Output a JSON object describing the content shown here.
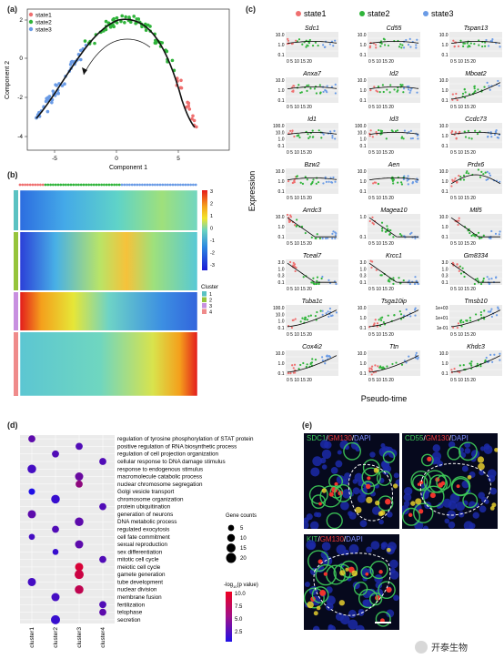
{
  "panel_labels": {
    "a": "(a)",
    "b": "(b)",
    "c": "(c)",
    "d": "(d)",
    "e": "(e)"
  },
  "colors": {
    "state1": "#ef6f6f",
    "state2": "#2fb43a",
    "state3": "#6a9be6",
    "cluster1": "#5bc2c2",
    "cluster2": "#96c43c",
    "cluster3": "#c890e0",
    "cluster4": "#ef8b8b"
  },
  "panel_a": {
    "legend": [
      "state1",
      "state2",
      "state3"
    ],
    "xlabel": "Component 1",
    "ylabel": "Component 2",
    "xticks": [
      "-5",
      "0",
      "5"
    ],
    "yticks": [
      "-4",
      "-2",
      "0",
      "2"
    ]
  },
  "panel_b": {
    "colorbar_ticks": [
      "3",
      "2",
      "1",
      "0",
      "-1",
      "-2",
      "-3"
    ],
    "cluster_title": "Cluster",
    "clusters": [
      "1",
      "2",
      "3",
      "4"
    ]
  },
  "panel_c": {
    "legend": [
      "state1",
      "state2",
      "state3"
    ],
    "ylabel": "Expression",
    "xlabel": "Pseudo-time",
    "xticks": "0 5 10 15 20",
    "genes": [
      {
        "name": "Sdc1",
        "ticks": [
          "10.0",
          "1.0",
          "0.1"
        ],
        "trend": "flat"
      },
      {
        "name": "Cd55",
        "ticks": [
          "10.0",
          "1.0",
          "0.1"
        ],
        "trend": "flat"
      },
      {
        "name": "Tspan13",
        "ticks": [
          "10.0",
          "1.0",
          "0.1"
        ],
        "trend": "flat"
      },
      {
        "name": "Anxa7",
        "ticks": [
          "10.0",
          "1.0",
          "0.1"
        ],
        "trend": "flat"
      },
      {
        "name": "Id2",
        "ticks": [
          "10.0",
          "1.0",
          "0.1"
        ],
        "trend": "flat"
      },
      {
        "name": "Mboat2",
        "ticks": [
          "10.0",
          "1.0",
          "0.1"
        ],
        "trend": "up"
      },
      {
        "name": "Id1",
        "ticks": [
          "100.0",
          "10.0",
          "1.0",
          "0.1"
        ],
        "trend": "flat"
      },
      {
        "name": "Id3",
        "ticks": [
          "100.0",
          "10.0",
          "1.0",
          "0.1"
        ],
        "trend": "flat"
      },
      {
        "name": "Ccdc73",
        "ticks": [
          "10.0",
          "1.0",
          "0.1"
        ],
        "trend": "flat"
      },
      {
        "name": "Bzw2",
        "ticks": [
          "10.0",
          "1.0",
          "0.1"
        ],
        "trend": "flat"
      },
      {
        "name": "Aen",
        "ticks": [
          "10.0",
          "1.0",
          "0.1"
        ],
        "trend": "flat"
      },
      {
        "name": "Prdx6",
        "ticks": [
          "10.0",
          "1.0",
          "0.1"
        ],
        "trend": "bump"
      },
      {
        "name": "Arrdc3",
        "ticks": [
          "10.0",
          "1.0",
          "0.1"
        ],
        "trend": "down"
      },
      {
        "name": "Magea10",
        "ticks": [
          "1.0",
          "0.1"
        ],
        "trend": "down"
      },
      {
        "name": "Mtl5",
        "ticks": [
          "10.0",
          "1.0",
          "0.1"
        ],
        "trend": "down"
      },
      {
        "name": "Tceal7",
        "ticks": [
          "3.0",
          "1.0",
          "0.3",
          "0.1"
        ],
        "trend": "down"
      },
      {
        "name": "Krcc1",
        "ticks": [
          "3.0",
          "1.0",
          "0.3",
          "0.1"
        ],
        "trend": "down"
      },
      {
        "name": "Gm8334",
        "ticks": [
          "3.0",
          "1.0",
          "0.3",
          "0.1"
        ],
        "trend": "down"
      },
      {
        "name": "Tuba1c",
        "ticks": [
          "100.0",
          "10.0",
          "1.0",
          "0.1"
        ],
        "trend": "up"
      },
      {
        "name": "Tsga10ip",
        "ticks": [
          "10.0",
          "1.0",
          "0.1"
        ],
        "trend": "up"
      },
      {
        "name": "Tmsb10",
        "ticks": [
          "1e+03",
          "1e+01",
          "1e-01"
        ],
        "trend": "up"
      },
      {
        "name": "Cox4i2",
        "ticks": [
          "10.0",
          "1.0",
          "0.1"
        ],
        "trend": "up"
      },
      {
        "name": "Ttn",
        "ticks": [
          "10.0",
          "1.0",
          "0.1"
        ],
        "trend": "up"
      },
      {
        "name": "Khdc3",
        "ticks": [
          "10.0",
          "1.0",
          "0.1"
        ],
        "trend": "up"
      }
    ]
  },
  "panel_d": {
    "clusters": [
      "cluster1",
      "cluster2",
      "cluster3",
      "cluster4"
    ],
    "terms": [
      "regulation of tyrosine phosphorylation of STAT protein",
      "positive regulation of RNA biosynthetic process",
      "regulation of cell projection organization",
      "cellular response to DNA damage stimulus",
      "response to endogenous stimulus",
      "macromolecule catabolic process",
      "nuclear chromosome segregation",
      "Golgi vesicle transport",
      "chromosome organization",
      "protein ubiquitination",
      "generation of neurons",
      "DNA metabolic process",
      "regulated exocytosis",
      "cell fate commitment",
      "sexual reproduction",
      "sex differentiation",
      "mitotic cell cycle",
      "meiotic cell cycle",
      "gamete generation",
      "tube development",
      "nuclear division",
      "membrane fusion",
      "fertilization",
      "telophase",
      "secretion"
    ],
    "points": [
      {
        "term": 0,
        "cluster": 0,
        "count": 8,
        "p": 4.5
      },
      {
        "term": 1,
        "cluster": 2,
        "count": 8,
        "p": 4.0
      },
      {
        "term": 2,
        "cluster": 1,
        "count": 8,
        "p": 4.0
      },
      {
        "term": 3,
        "cluster": 3,
        "count": 8,
        "p": 4.0
      },
      {
        "term": 4,
        "cluster": 0,
        "count": 14,
        "p": 3.5
      },
      {
        "term": 5,
        "cluster": 2,
        "count": 12,
        "p": 5.0
      },
      {
        "term": 6,
        "cluster": 2,
        "count": 8,
        "p": 6.5
      },
      {
        "term": 7,
        "cluster": 0,
        "count": 6,
        "p": 2.0
      },
      {
        "term": 8,
        "cluster": 1,
        "count": 14,
        "p": 3.0
      },
      {
        "term": 9,
        "cluster": 3,
        "count": 8,
        "p": 4.0
      },
      {
        "term": 10,
        "cluster": 0,
        "count": 12,
        "p": 4.5
      },
      {
        "term": 11,
        "cluster": 2,
        "count": 14,
        "p": 4.5
      },
      {
        "term": 12,
        "cluster": 1,
        "count": 8,
        "p": 4.0
      },
      {
        "term": 13,
        "cluster": 0,
        "count": 5,
        "p": 3.5
      },
      {
        "term": 14,
        "cluster": 2,
        "count": 12,
        "p": 4.5
      },
      {
        "term": 15,
        "cluster": 1,
        "count": 5,
        "p": 3.0
      },
      {
        "term": 16,
        "cluster": 3,
        "count": 8,
        "p": 4.0
      },
      {
        "term": 17,
        "cluster": 2,
        "count": 12,
        "p": 9.5
      },
      {
        "term": 18,
        "cluster": 2,
        "count": 16,
        "p": 9.0
      },
      {
        "term": 19,
        "cluster": 0,
        "count": 12,
        "p": 3.5
      },
      {
        "term": 20,
        "cluster": 2,
        "count": 14,
        "p": 8.5
      },
      {
        "term": 21,
        "cluster": 1,
        "count": 12,
        "p": 3.5
      },
      {
        "term": 22,
        "cluster": 3,
        "count": 8,
        "p": 4.0
      },
      {
        "term": 23,
        "cluster": 3,
        "count": 8,
        "p": 4.5
      },
      {
        "term": 24,
        "cluster": 1,
        "count": 16,
        "p": 3.0
      }
    ],
    "size_legend_title": "Gene counts",
    "size_legend": [
      "5",
      "10",
      "15",
      "20"
    ],
    "color_legend_ticks": [
      "10.0",
      "7.5",
      "5.0",
      "2.5"
    ]
  },
  "panel_e": {
    "images": [
      {
        "label_a": "SDC1",
        "label_b": "GM130",
        "label_c": "DAPI",
        "color_a": "#3fcf5b"
      },
      {
        "label_a": "CD55",
        "label_b": "GM130",
        "label_c": "DAPI",
        "color_a": "#3fcf5b"
      },
      {
        "label_a": "KIT",
        "label_b": "GM130",
        "label_c": "DAPI",
        "color_a": "#3fcf5b"
      }
    ],
    "sep": "/"
  },
  "watermark": "开泰生物"
}
